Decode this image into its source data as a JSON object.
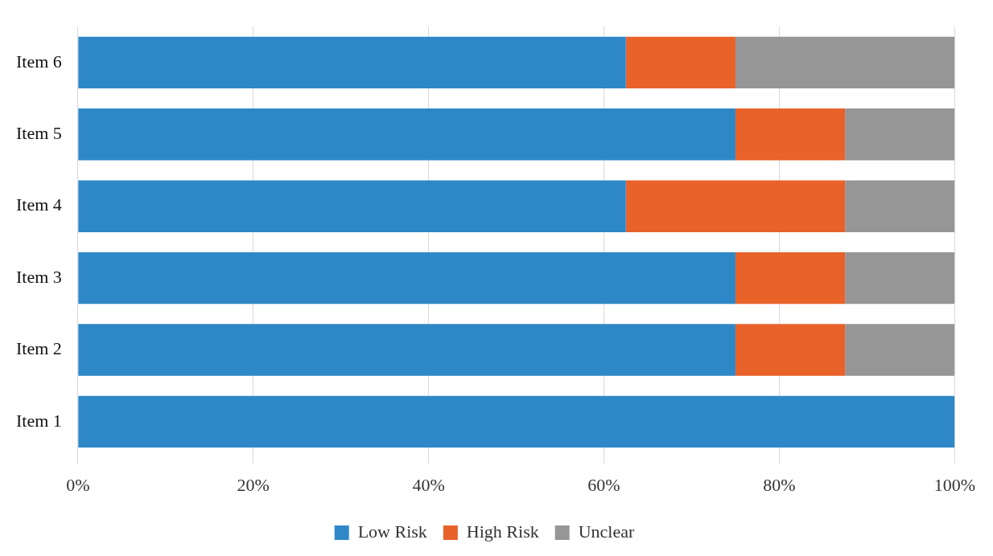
{
  "chart_data": {
    "type": "bar",
    "orientation": "horizontal",
    "stacked": true,
    "categories": [
      "Item 6",
      "Item 5",
      "Item 4",
      "Item 3",
      "Item 2",
      "Item 1"
    ],
    "series": [
      {
        "name": "Low Risk",
        "color": "#2e88c8",
        "values": [
          62.5,
          75,
          62.5,
          75,
          75,
          100
        ]
      },
      {
        "name": "High Risk",
        "color": "#e8622a",
        "values": [
          12.5,
          12.5,
          25,
          12.5,
          12.5,
          0
        ]
      },
      {
        "name": "Unclear",
        "color": "#969696",
        "values": [
          25,
          12.5,
          12.5,
          12.5,
          12.5,
          0
        ]
      }
    ],
    "xlim": [
      0,
      100
    ],
    "xticks": [
      {
        "value": 0,
        "label": "0%"
      },
      {
        "value": 20,
        "label": "20%"
      },
      {
        "value": 40,
        "label": "40%"
      },
      {
        "value": 60,
        "label": "60%"
      },
      {
        "value": 80,
        "label": "80%"
      },
      {
        "value": 100,
        "label": "100%"
      }
    ],
    "grid": "x",
    "legend": "bottom"
  }
}
